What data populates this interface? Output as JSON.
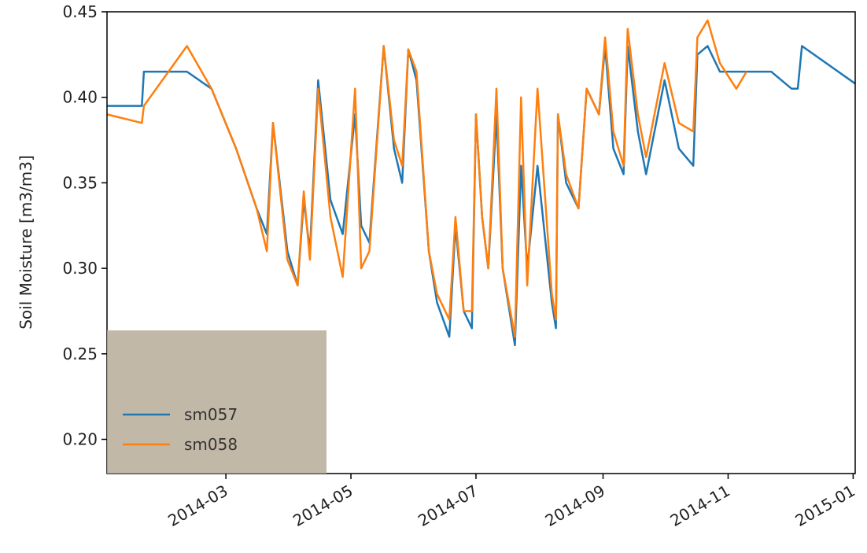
{
  "chart_data": {
    "type": "line",
    "y_label": "Soil Moisture [m3/m3]",
    "x": [
      "2014-01-02",
      "2014-01-19",
      "2014-01-20",
      "2014-02-10",
      "2014-02-22",
      "2014-03-06",
      "2014-03-16",
      "2014-03-21",
      "2014-03-24",
      "2014-03-31",
      "2014-04-05",
      "2014-04-08",
      "2014-04-11",
      "2014-04-15",
      "2014-04-21",
      "2014-04-27",
      "2014-05-03",
      "2014-05-06",
      "2014-05-10",
      "2014-05-17",
      "2014-05-22",
      "2014-05-26",
      "2014-05-29",
      "2014-06-02",
      "2014-06-08",
      "2014-06-12",
      "2014-06-18",
      "2014-06-21",
      "2014-06-25",
      "2014-06-29",
      "2014-07-01",
      "2014-07-04",
      "2014-07-07",
      "2014-07-11",
      "2014-07-14",
      "2014-07-20",
      "2014-07-23",
      "2014-07-26",
      "2014-07-31",
      "2014-08-07",
      "2014-08-09",
      "2014-08-10",
      "2014-08-14",
      "2014-08-20",
      "2014-08-24",
      "2014-08-30",
      "2014-09-02",
      "2014-09-06",
      "2014-09-11",
      "2014-09-13",
      "2014-09-18",
      "2014-09-22",
      "2014-10-01",
      "2014-10-08",
      "2014-10-15",
      "2014-10-17",
      "2014-10-22",
      "2014-10-28",
      "2014-11-05",
      "2014-11-10",
      "2014-11-22",
      "2014-12-02",
      "2014-12-05",
      "2014-12-07",
      "2015-01-02"
    ],
    "series": [
      {
        "name": "sm057",
        "color": "#1f77b4",
        "values": [
          0.395,
          0.395,
          0.415,
          0.415,
          0.405,
          0.37,
          0.335,
          0.32,
          0.385,
          0.31,
          0.29,
          0.34,
          0.31,
          0.41,
          0.34,
          0.32,
          0.39,
          0.325,
          0.315,
          0.43,
          0.37,
          0.35,
          0.428,
          0.41,
          0.31,
          0.28,
          0.26,
          0.325,
          0.275,
          0.265,
          0.39,
          0.33,
          0.3,
          0.39,
          0.3,
          0.255,
          0.36,
          0.3,
          0.36,
          0.28,
          0.265,
          0.39,
          0.35,
          0.335,
          0.405,
          0.39,
          0.43,
          0.37,
          0.355,
          0.43,
          0.38,
          0.355,
          0.41,
          0.37,
          0.36,
          0.425,
          0.43,
          0.415,
          0.415,
          0.415,
          0.415,
          0.405,
          0.405,
          0.43,
          0.408
        ]
      },
      {
        "name": "sm058",
        "color": "#ff7f0e",
        "values": [
          0.39,
          0.385,
          0.395,
          0.43,
          0.405,
          0.37,
          0.335,
          0.31,
          0.385,
          0.305,
          0.29,
          0.345,
          0.305,
          0.405,
          0.33,
          0.295,
          0.405,
          0.3,
          0.31,
          0.43,
          0.375,
          0.36,
          0.428,
          0.415,
          0.31,
          0.285,
          0.27,
          0.33,
          0.275,
          0.275,
          0.39,
          0.33,
          0.3,
          0.405,
          0.3,
          0.26,
          0.4,
          0.29,
          0.405,
          0.285,
          0.27,
          0.39,
          0.355,
          0.335,
          0.405,
          0.39,
          0.435,
          0.38,
          0.36,
          0.44,
          0.39,
          0.365,
          0.42,
          0.385,
          0.38,
          0.435,
          0.445,
          0.42,
          0.405,
          0.415,
          null,
          null,
          null,
          null,
          null
        ]
      }
    ],
    "xlim": [
      "2014-01-02",
      "2015-01-02"
    ],
    "xticks": [
      "2014-03",
      "2014-05",
      "2014-07",
      "2014-09",
      "2014-11",
      "2015-01"
    ],
    "ylim": [
      0.18,
      0.45
    ],
    "yticks": [
      {
        "value": 0.2,
        "label": "0.20"
      },
      0.25,
      {
        "value": 0.3,
        "label": "0.30"
      },
      0.35,
      {
        "value": 0.4,
        "label": "0.40"
      },
      0.45
    ],
    "legend": "lower left"
  }
}
